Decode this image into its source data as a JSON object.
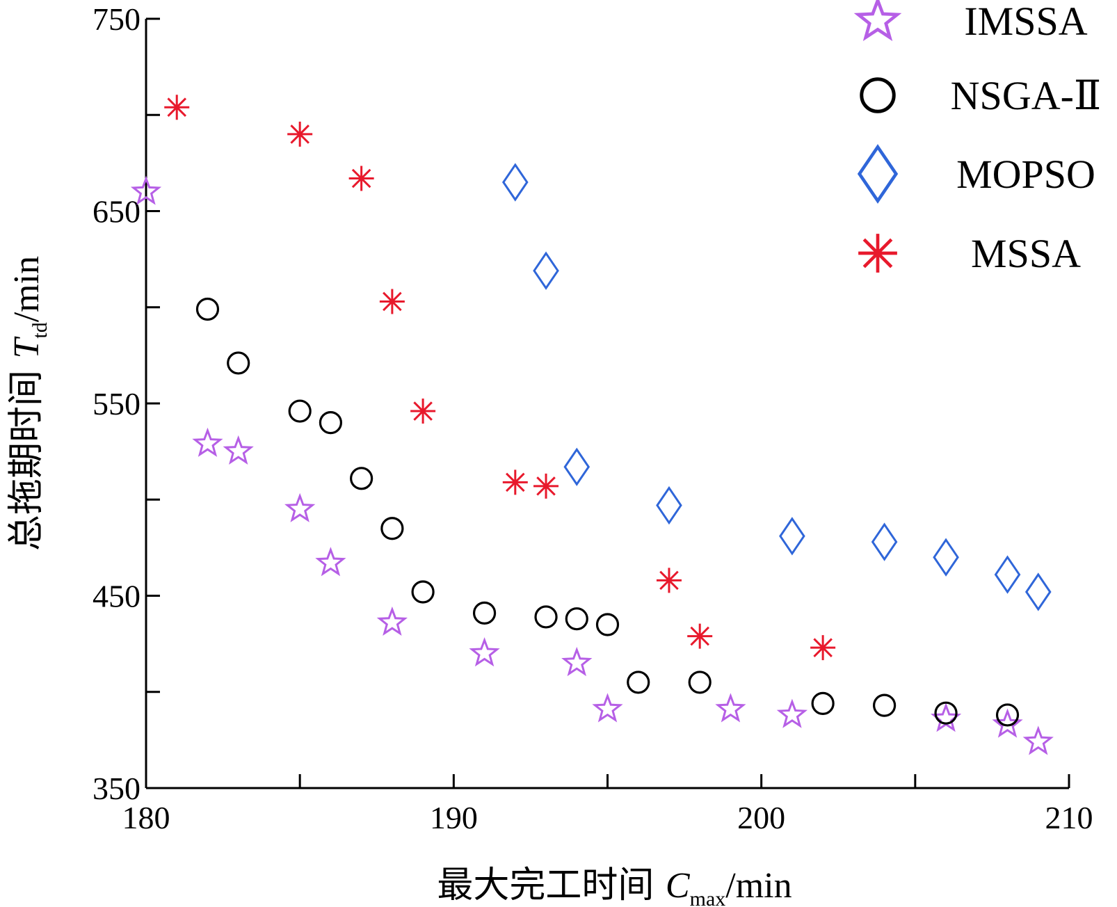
{
  "chart_data": {
    "type": "scatter",
    "xlabel": {
      "prefix": "最大完工时间 ",
      "symbol": "C",
      "subscript": "max",
      "suffix": "/min"
    },
    "ylabel": {
      "prefix": "总拖期时间 ",
      "symbol": "T",
      "subscript": "td",
      "suffix": "/min"
    },
    "xlim": [
      180,
      210
    ],
    "ylim": [
      350,
      750
    ],
    "x_ticks": [
      180,
      185,
      190,
      195,
      200,
      205,
      210
    ],
    "x_tick_labels": [
      "180",
      "",
      "190",
      "",
      "200",
      "",
      "210"
    ],
    "y_ticks": [
      350,
      400,
      450,
      500,
      550,
      600,
      650,
      700,
      750
    ],
    "y_tick_labels": [
      "350",
      "",
      "450",
      "",
      "550",
      "",
      "650",
      "",
      "750"
    ],
    "grid": false,
    "legend_position": "top-right",
    "series": [
      {
        "name": "IMSSA",
        "marker": "star",
        "color": "#b65fe6",
        "points": [
          [
            180,
            660
          ],
          [
            182,
            529
          ],
          [
            183,
            525
          ],
          [
            185,
            495
          ],
          [
            186,
            467
          ],
          [
            188,
            436
          ],
          [
            191,
            420
          ],
          [
            194,
            415
          ],
          [
            195,
            391
          ],
          [
            199,
            391
          ],
          [
            201,
            388
          ],
          [
            206,
            386
          ],
          [
            208,
            383
          ],
          [
            209,
            374
          ]
        ]
      },
      {
        "name": "NSGA-Ⅱ",
        "marker": "circle",
        "color": "#000000",
        "points": [
          [
            182,
            599
          ],
          [
            183,
            571
          ],
          [
            185,
            546
          ],
          [
            186,
            540
          ],
          [
            187,
            511
          ],
          [
            188,
            485
          ],
          [
            189,
            452
          ],
          [
            191,
            441
          ],
          [
            193,
            439
          ],
          [
            194,
            438
          ],
          [
            195,
            435
          ],
          [
            196,
            405
          ],
          [
            198,
            405
          ],
          [
            202,
            394
          ],
          [
            204,
            393
          ],
          [
            206,
            389
          ],
          [
            208,
            388
          ]
        ]
      },
      {
        "name": "MOPSO",
        "marker": "diamond",
        "color": "#2f66d9",
        "points": [
          [
            192,
            665
          ],
          [
            193,
            619
          ],
          [
            194,
            517
          ],
          [
            197,
            497
          ],
          [
            201,
            481
          ],
          [
            204,
            478
          ],
          [
            206,
            470
          ],
          [
            208,
            461
          ],
          [
            209,
            452
          ]
        ]
      },
      {
        "name": "MSSA",
        "marker": "asterisk",
        "color": "#e8192c",
        "points": [
          [
            181,
            704
          ],
          [
            185,
            690
          ],
          [
            187,
            667
          ],
          [
            188,
            603
          ],
          [
            189,
            546
          ],
          [
            192,
            509
          ],
          [
            193,
            507
          ],
          [
            197,
            458
          ],
          [
            198,
            429
          ],
          [
            202,
            423
          ]
        ]
      }
    ]
  }
}
